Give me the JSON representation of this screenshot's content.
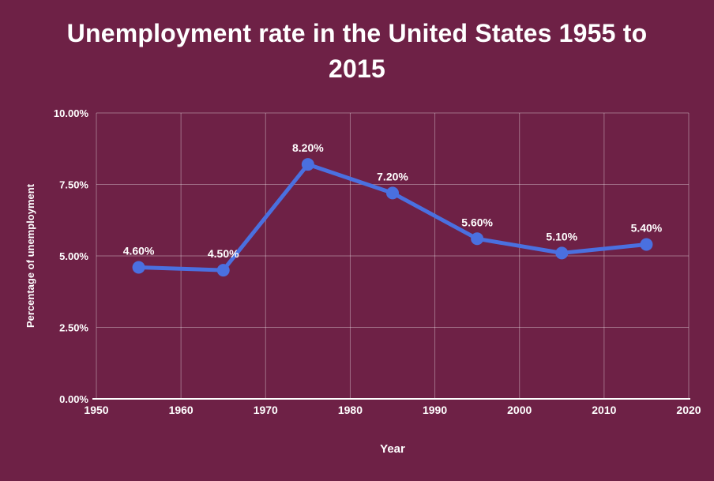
{
  "title_lines": [
    "Unemployment rate in the United States 1955 to",
    "2015"
  ],
  "colors": {
    "background": "#6e2146",
    "line": "#4a70e0",
    "marker": "#4a70e0",
    "text": "#ffffff",
    "gridline": "rgba(255,255,255,0.35)",
    "axis_line": "#ffffff"
  },
  "chart_data": {
    "type": "line",
    "title": "Unemployment rate in the United States 1955 to 2015",
    "xlabel": "Year",
    "ylabel": "Percentage of unemployment",
    "x": [
      1955,
      1965,
      1975,
      1985,
      1995,
      2005,
      2015
    ],
    "values": [
      4.6,
      4.5,
      8.2,
      7.2,
      5.6,
      5.1,
      5.4
    ],
    "point_labels": [
      "4.60%",
      "4.50%",
      "8.20%",
      "7.20%",
      "5.60%",
      "5.10%",
      "5.40%"
    ],
    "xlim": [
      1950,
      2020
    ],
    "ylim": [
      0,
      10
    ],
    "xticks": [
      1950,
      1960,
      1970,
      1980,
      1990,
      2000,
      2010,
      2020
    ],
    "xtick_labels": [
      "1950",
      "1960",
      "1970",
      "1980",
      "1990",
      "2000",
      "2010",
      "2020"
    ],
    "yticks": [
      0,
      2.5,
      5,
      7.5,
      10
    ],
    "ytick_labels": [
      "0.00%",
      "2.50%",
      "5.00%",
      "7.50%",
      "10.00%"
    ],
    "grid": true,
    "legend": "none"
  }
}
